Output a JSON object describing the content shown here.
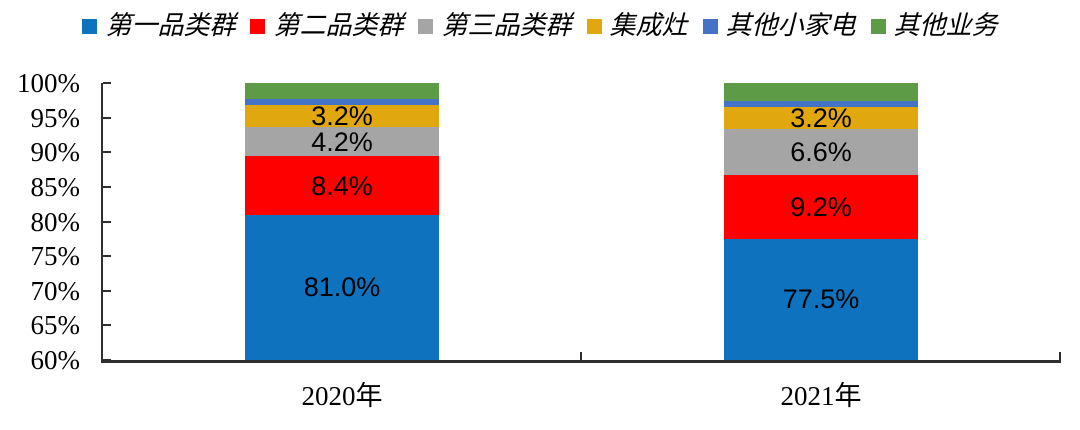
{
  "legend": {
    "position": "top",
    "items": [
      {
        "label": "第一品类群",
        "color": "#0E72BE"
      },
      {
        "label": "第二品类群",
        "color": "#FF0000"
      },
      {
        "label": "第三品类群",
        "color": "#A5A5A5"
      },
      {
        "label": "集成灶",
        "color": "#E0A70E"
      },
      {
        "label": "其他小家电",
        "color": "#4472C4"
      },
      {
        "label": "其他业务",
        "color": "#5E9B47"
      }
    ]
  },
  "chart_data": {
    "type": "bar",
    "subtype": "stacked-100",
    "categories": [
      "2020年",
      "2021年"
    ],
    "series": [
      {
        "name": "第一品类群",
        "color": "#0E72BE",
        "values": [
          81.0,
          77.5
        ],
        "shown_labels": [
          "81.0%",
          "77.5%"
        ]
      },
      {
        "name": "第二品类群",
        "color": "#FF0000",
        "values": [
          8.4,
          9.2
        ],
        "shown_labels": [
          "8.4%",
          "9.2%"
        ]
      },
      {
        "name": "第三品类群",
        "color": "#A5A5A5",
        "values": [
          4.2,
          6.6
        ],
        "shown_labels": [
          "4.2%",
          "6.6%"
        ]
      },
      {
        "name": "集成灶",
        "color": "#E0A70E",
        "values": [
          3.2,
          3.2
        ],
        "shown_labels": [
          "3.2%",
          "3.2%"
        ]
      },
      {
        "name": "其他小家电",
        "color": "#4472C4",
        "values": [
          0.9,
          0.9
        ],
        "shown_labels": [
          "",
          ""
        ]
      },
      {
        "name": "其他业务",
        "color": "#5E9B47",
        "values": [
          2.3,
          2.6
        ],
        "shown_labels": [
          "",
          ""
        ]
      }
    ],
    "ylim": [
      60,
      100
    ],
    "yticks": [
      "100%",
      "95%",
      "90%",
      "85%",
      "80%",
      "75%",
      "70%",
      "65%",
      "60%"
    ],
    "grid": false,
    "legend_position": "top",
    "title": "",
    "xlabel": "",
    "ylabel": ""
  }
}
